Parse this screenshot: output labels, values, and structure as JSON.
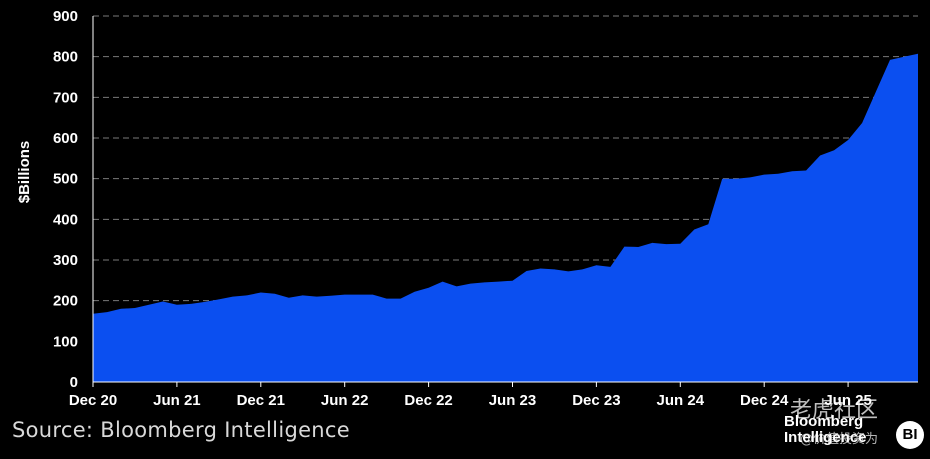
{
  "chart_data": {
    "type": "area",
    "title": "",
    "xlabel": "",
    "ylabel": "$Billions",
    "ylim": [
      0,
      900
    ],
    "yticks": [
      0,
      100,
      200,
      300,
      400,
      500,
      600,
      700,
      800,
      900
    ],
    "xtick_labels": [
      "Dec 20",
      "Jun 21",
      "Dec 21",
      "Jun 22",
      "Dec 22",
      "Jun 23",
      "Dec 23",
      "Jun 24",
      "Dec 24",
      "Jun 25"
    ],
    "xtick_months": [
      0,
      6,
      12,
      18,
      24,
      30,
      36,
      42,
      48,
      54
    ],
    "grid": "horizontal dashed",
    "fill_color": "#0b4ff0",
    "x_months_since_dec20": [
      0,
      1,
      2,
      3,
      4,
      5,
      6,
      7,
      8,
      9,
      10,
      11,
      12,
      13,
      14,
      15,
      16,
      17,
      18,
      19,
      20,
      21,
      22,
      23,
      24,
      25,
      26,
      27,
      28,
      29,
      30,
      31,
      32,
      33,
      34,
      35,
      36,
      37,
      38,
      39,
      40,
      41,
      42,
      43,
      44,
      45,
      46,
      47,
      48,
      49,
      50,
      51,
      52,
      53,
      54,
      55,
      56,
      57,
      58,
      59
    ],
    "values": [
      168,
      172,
      180,
      182,
      190,
      198,
      190,
      192,
      197,
      203,
      210,
      213,
      220,
      217,
      207,
      213,
      210,
      212,
      215,
      215,
      215,
      205,
      205,
      222,
      232,
      247,
      235,
      242,
      245,
      247,
      249,
      273,
      279,
      277,
      272,
      277,
      287,
      283,
      333,
      332,
      342,
      339,
      340,
      375,
      388,
      500,
      500,
      503,
      510,
      512,
      518,
      520,
      557,
      570,
      595,
      637,
      715,
      792,
      800,
      807
    ]
  },
  "source": "Source: Bloomberg Intelligence",
  "logo": {
    "line1": "Bloomberg",
    "line2": "Intelligence",
    "badge": "BI"
  },
  "watermark": {
    "main": "老虎社区",
    "sub": "@价值投资为"
  }
}
